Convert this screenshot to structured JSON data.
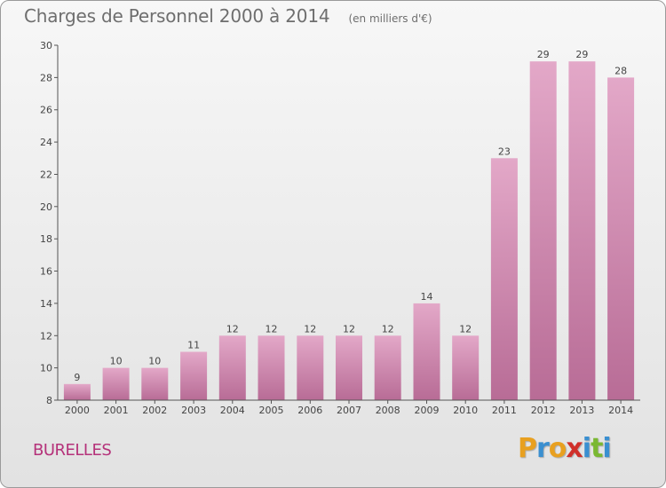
{
  "header": {
    "title": "Charges de Personnel 2000 à 2014",
    "subtitle": "(en milliers d'€)"
  },
  "footer": {
    "commune": "BURELLES"
  },
  "logo": {
    "letters": [
      "P",
      "r",
      "o",
      "x",
      "i",
      "t",
      "i"
    ],
    "colors": [
      "#e8a020",
      "#3a8fd0",
      "#e8a020",
      "#d0302a",
      "#3a8fd0",
      "#7ab832",
      "#3a8fd0"
    ]
  },
  "colors": {
    "bar": "#d48ab0",
    "bar_light": "#e3a8c8",
    "bar_dark": "#b86c96",
    "axis": "#555555",
    "text": "#444444"
  },
  "chart_data": {
    "type": "bar",
    "title": "Charges de Personnel 2000 à 2014",
    "subtitle": "(en milliers d'€)",
    "categories": [
      "2000",
      "2001",
      "2002",
      "2003",
      "2004",
      "2005",
      "2006",
      "2007",
      "2008",
      "2009",
      "2010",
      "2011",
      "2012",
      "2013",
      "2014"
    ],
    "values": [
      9,
      10,
      10,
      11,
      12,
      12,
      12,
      12,
      12,
      14,
      12,
      23,
      29,
      29,
      28
    ],
    "data_labels": [
      "9",
      "10",
      "10",
      "11",
      "12",
      "12",
      "12",
      "12",
      "12",
      "14",
      "12",
      "23",
      "29",
      "29",
      "28"
    ],
    "ylim": [
      8,
      30
    ],
    "yticks": [
      8,
      10,
      12,
      14,
      16,
      18,
      20,
      22,
      24,
      26,
      28,
      30
    ],
    "ytick_labels": [
      "8",
      "10",
      "12",
      "14",
      "16",
      "18",
      "20",
      "22",
      "24",
      "26",
      "28",
      "30"
    ],
    "grid": false,
    "legend": "none"
  }
}
